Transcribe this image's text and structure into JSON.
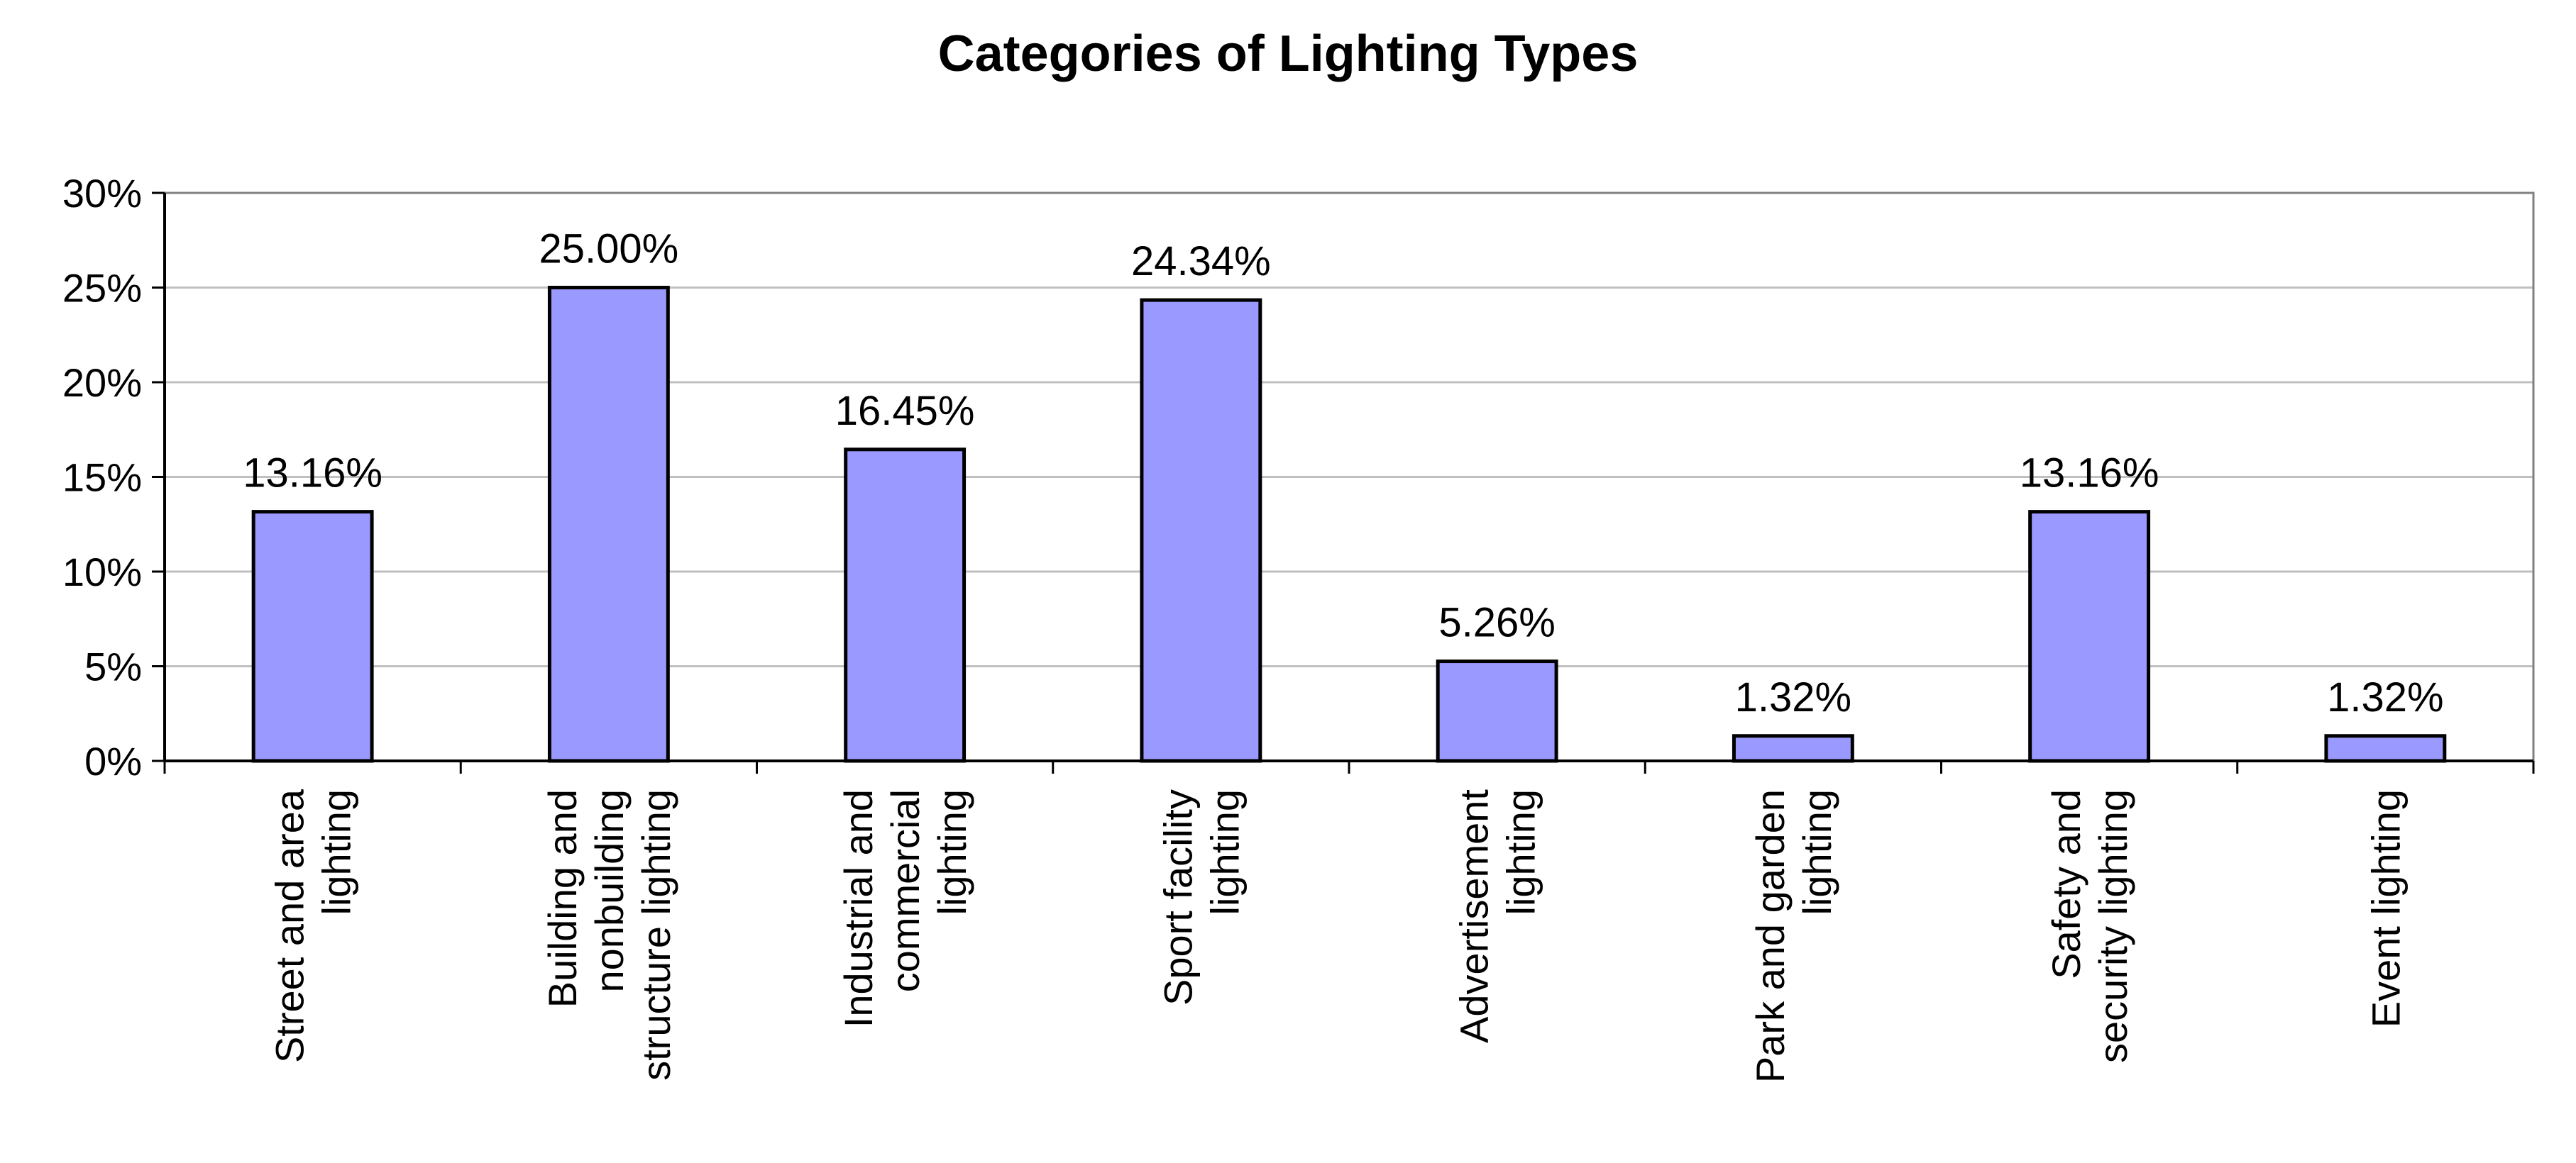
{
  "chart_data": {
    "type": "bar",
    "title": "Categories of Lighting Types",
    "xlabel": "",
    "ylabel": "",
    "categories": [
      "Street and area lighting",
      "Building and nonbuilding structure lighting",
      "Industrial and commercial lighting",
      "Sport facility lighting",
      "Advertisement lighting",
      "Park and garden lighting",
      "Safety and security lighting",
      "Event lighting"
    ],
    "category_label_lines": [
      [
        "Street and area",
        "lighting"
      ],
      [
        "Building and",
        "nonbuilding",
        "structure lighting"
      ],
      [
        "Industrial and",
        "commercial",
        "lighting"
      ],
      [
        "Sport facility",
        "lighting"
      ],
      [
        "Advertisement",
        "lighting"
      ],
      [
        "Park and garden",
        "lighting"
      ],
      [
        "Safety and",
        "security lighting"
      ],
      [
        "Event lighting"
      ]
    ],
    "values": [
      13.16,
      25.0,
      16.45,
      24.34,
      5.26,
      1.32,
      13.16,
      1.32
    ],
    "data_labels": [
      "13.16%",
      "25.00%",
      "16.45%",
      "24.34%",
      "5.26%",
      "1.32%",
      "13.16%",
      "1.32%"
    ],
    "ylim": [
      0,
      30
    ],
    "yticks": [
      0,
      5,
      10,
      15,
      20,
      25,
      30
    ],
    "ytick_labels": [
      "0%",
      "5%",
      "10%",
      "15%",
      "20%",
      "25%",
      "30%"
    ],
    "grid": true,
    "legend": "none",
    "colors": {
      "bar_fill": "#9999ff",
      "bar_stroke": "#000000",
      "grid": "#c0c0c0",
      "axis": "#000000",
      "plot_border": "#808080"
    }
  }
}
